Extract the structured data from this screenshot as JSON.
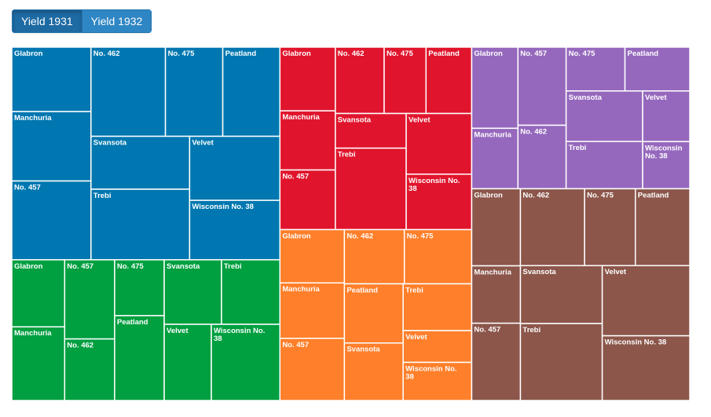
{
  "toolbar": {
    "buttons": [
      {
        "label": "Yield 1931",
        "active": true
      },
      {
        "label": "Yield 1932",
        "active": false
      }
    ]
  },
  "chart_data": {
    "type": "treemap",
    "value_field": "Yield 1931",
    "border_color": "#ffffff",
    "groups": [
      {
        "color": "#0077b0",
        "items": [
          {
            "name": "Glabron",
            "value": 58.6
          },
          {
            "name": "Manchuria",
            "value": 63.1
          },
          {
            "name": "No. 457",
            "value": 71.6
          },
          {
            "name": "No. 462",
            "value": 76.2
          },
          {
            "name": "No. 475",
            "value": 58.7
          },
          {
            "name": "Peatland",
            "value": 58.5
          },
          {
            "name": "Svansota",
            "value": 59.9
          },
          {
            "name": "Trebi",
            "value": 79.9
          },
          {
            "name": "Velvet",
            "value": 66.4
          },
          {
            "name": "Wisconsin No. 38",
            "value": 61.6
          }
        ]
      },
      {
        "color": "#009f40",
        "items": [
          {
            "name": "Glabron",
            "value": 40.7
          },
          {
            "name": "Manchuria",
            "value": 44.7
          },
          {
            "name": "No. 457",
            "value": 45.4
          },
          {
            "name": "No. 462",
            "value": 35.3
          },
          {
            "name": "No. 475",
            "value": 31.8
          },
          {
            "name": "Peatland",
            "value": 48.3
          },
          {
            "name": "Svansota",
            "value": 42.4
          },
          {
            "name": "Trebi",
            "value": 43.3
          },
          {
            "name": "Velvet",
            "value": 41.2
          },
          {
            "name": "Wisconsin No. 38",
            "value": 60.0
          }
        ]
      },
      {
        "color": "#e0152d",
        "items": [
          {
            "name": "Glabron",
            "value": 40.5
          },
          {
            "name": "Manchuria",
            "value": 37.6
          },
          {
            "name": "No. 457",
            "value": 37.9
          },
          {
            "name": "No. 462",
            "value": 37.2
          },
          {
            "name": "No. 475",
            "value": 31.9
          },
          {
            "name": "Peatland",
            "value": 34.8
          },
          {
            "name": "Svansota",
            "value": 28.2
          },
          {
            "name": "Trebi",
            "value": 66.3
          },
          {
            "name": "Velvet",
            "value": 45.6
          },
          {
            "name": "Wisconsin No. 38",
            "value": 41.7
          }
        ]
      },
      {
        "color": "#ff7f2a",
        "items": [
          {
            "name": "Glabron",
            "value": 39.4
          },
          {
            "name": "Manchuria",
            "value": 41.0
          },
          {
            "name": "No. 457",
            "value": 46.0
          },
          {
            "name": "No. 462",
            "value": 37.3
          },
          {
            "name": "No. 475",
            "value": 41.9
          },
          {
            "name": "Peatland",
            "value": 39.9
          },
          {
            "name": "Svansota",
            "value": 38.8
          },
          {
            "name": "Trebi",
            "value": 36.8
          },
          {
            "name": "Velvet",
            "value": 25.0
          },
          {
            "name": "Wisconsin No. 38",
            "value": 30.0
          }
        ]
      },
      {
        "color": "#9568bd",
        "items": [
          {
            "name": "Glabron",
            "value": 43.1
          },
          {
            "name": "Manchuria",
            "value": 32.1
          },
          {
            "name": "No. 457",
            "value": 43.2
          },
          {
            "name": "No. 462",
            "value": 35.1
          },
          {
            "name": "No. 475",
            "value": 29.6
          },
          {
            "name": "Peatland",
            "value": 32.6
          },
          {
            "name": "Svansota",
            "value": 44.4
          },
          {
            "name": "Trebi",
            "value": 41.5
          },
          {
            "name": "Velvet",
            "value": 27.4
          },
          {
            "name": "Wisconsin No. 38",
            "value": 25.5
          }
        ]
      },
      {
        "color": "#8c564b",
        "items": [
          {
            "name": "Glabron",
            "value": 43.1
          },
          {
            "name": "Manchuria",
            "value": 32.1
          },
          {
            "name": "No. 457",
            "value": 43.2
          },
          {
            "name": "No. 462",
            "value": 56.6
          },
          {
            "name": "No. 475",
            "value": 44.8
          },
          {
            "name": "Peatland",
            "value": 48.0
          },
          {
            "name": "Svansota",
            "value": 54.4
          },
          {
            "name": "Trebi",
            "value": 72.3
          },
          {
            "name": "Velvet",
            "value": 70.5
          },
          {
            "name": "Wisconsin No. 38",
            "value": 65.0
          }
        ]
      }
    ]
  }
}
